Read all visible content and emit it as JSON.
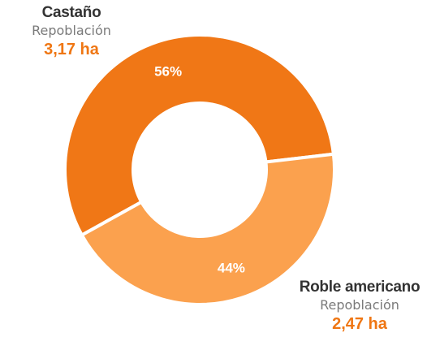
{
  "chart_data": {
    "type": "pie",
    "variant": "donut",
    "slices": [
      {
        "name": "Castaño",
        "category": "Repoblación",
        "value": 3.17,
        "value_label": "3,17 ha",
        "percent": 56,
        "percent_label": "56%",
        "color": "#f07716"
      },
      {
        "name": "Roble americano",
        "category": "Repoblación",
        "value": 2.47,
        "value_label": "2,47 ha",
        "percent": 44,
        "percent_label": "44%",
        "color": "#fba14e"
      }
    ]
  },
  "colors": {
    "name_text": "#333333",
    "sub_text": "#7a7a7a",
    "value_text": "#ef7613",
    "percent_text": "#ffffff"
  }
}
